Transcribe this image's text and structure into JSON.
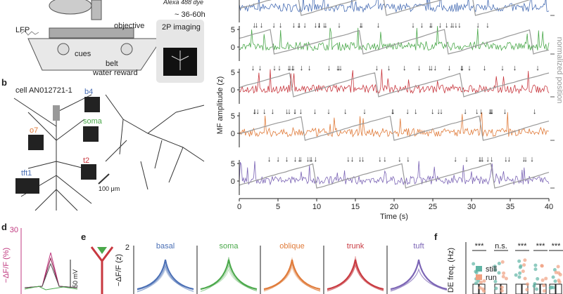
{
  "panel_a": {
    "labels": {
      "objective": "objective",
      "lfp": "LFP",
      "cues": "cues",
      "belt": "belt",
      "reward": "water reward",
      "dye": "Alexa 488 dye",
      "time": "~ 36-60h",
      "imaging": "2P imaging"
    }
  },
  "panel_b": {
    "label": "b",
    "cell": "cell AN012721-1",
    "sites": [
      "b4",
      "soma",
      "o7",
      "t2",
      "tft1"
    ],
    "scale": "100 μm"
  },
  "traces": {
    "ylabel": "MF amplitude (z)",
    "y2label": "normalized position",
    "xlabel": "Time (s)",
    "xlim": [
      0,
      40
    ],
    "xticks": [
      0,
      5,
      10,
      15,
      20,
      25,
      30,
      35,
      40
    ],
    "rows": [
      {
        "color": "#4a6fb5",
        "yticks": []
      },
      {
        "color": "#4aa84a",
        "yticks": [
          0,
          5
        ]
      },
      {
        "color": "#c8383f",
        "yticks": [
          0,
          5
        ]
      },
      {
        "color": "#e07b3a",
        "yticks": [
          0,
          5
        ]
      },
      {
        "color": "#7b64b5",
        "yticks": [
          0,
          5
        ]
      }
    ]
  },
  "panel_d": {
    "label": "d",
    "ylabel": "−ΔF/F (%)",
    "ytick": 30,
    "scale": "50 mV"
  },
  "panel_e": {
    "label": "e",
    "ylabel": "−ΔF/F (z)",
    "ytick": 2,
    "compartments": [
      {
        "name": "basal",
        "color": "#4a6fb5"
      },
      {
        "name": "soma",
        "color": "#4aa84a"
      },
      {
        "name": "oblique",
        "color": "#e07b3a"
      },
      {
        "name": "trunk",
        "color": "#c8383f"
      },
      {
        "name": "tuft",
        "color": "#7b64b5"
      }
    ]
  },
  "panel_f": {
    "label": "f",
    "ylabel": "DE freq. (Hz)",
    "legend": [
      {
        "name": "still",
        "color": "#5fb5a5"
      },
      {
        "name": "run",
        "color": "#f0a080"
      }
    ],
    "significance": [
      "***",
      "n.s.",
      "***",
      "***",
      "***"
    ]
  }
}
